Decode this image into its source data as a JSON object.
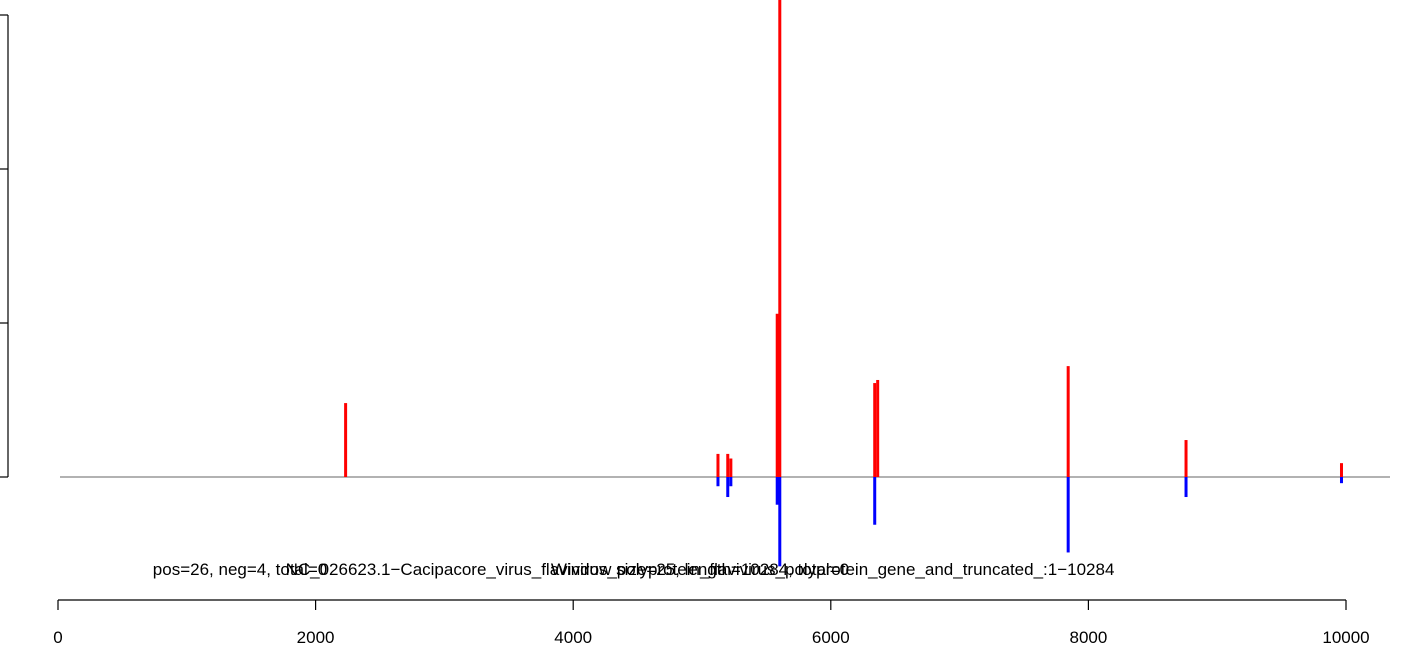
{
  "chart_data": {
    "type": "bar",
    "title": "",
    "xlabel": "",
    "ylabel": "",
    "caption_fragments": [
      "Window size=25, length=10284, total=0",
      "pos=26, neg=4, total=0",
      "NC_026623.1−Cacipacore_virus_flavivirus_polyprotein_flavivirus_polyprotein_gene_and_truncated_:1−10284"
    ],
    "xlim": [
      0,
      10284
    ],
    "x_ticks": [
      0,
      2000,
      4000,
      6000,
      8000,
      10000
    ],
    "ylim": [
      -0.58,
      2.9
    ],
    "y_ticks": [
      0,
      1,
      2,
      3
    ],
    "colors": {
      "positive": "#ff0000",
      "negative": "#0000ff",
      "baseline": "#666666",
      "axis": "#000000"
    },
    "series": [
      {
        "name": "positive",
        "values": [
          [
            2233,
            0.48
          ],
          [
            5124,
            0.15
          ],
          [
            5200,
            0.15
          ],
          [
            5224,
            0.12
          ],
          [
            5584,
            1.06
          ],
          [
            5604,
            3.2
          ],
          [
            6341,
            0.61
          ],
          [
            6364,
            0.63
          ],
          [
            7843,
            0.72
          ],
          [
            8758,
            0.24
          ],
          [
            9965,
            0.09
          ]
        ]
      },
      {
        "name": "negative",
        "values": [
          [
            5124,
            -0.06
          ],
          [
            5200,
            -0.13
          ],
          [
            5224,
            -0.06
          ],
          [
            5584,
            -0.18
          ],
          [
            5604,
            -0.58
          ],
          [
            6341,
            -0.31
          ],
          [
            7843,
            -0.49
          ],
          [
            8758,
            -0.13
          ],
          [
            9965,
            -0.04
          ]
        ]
      }
    ]
  }
}
